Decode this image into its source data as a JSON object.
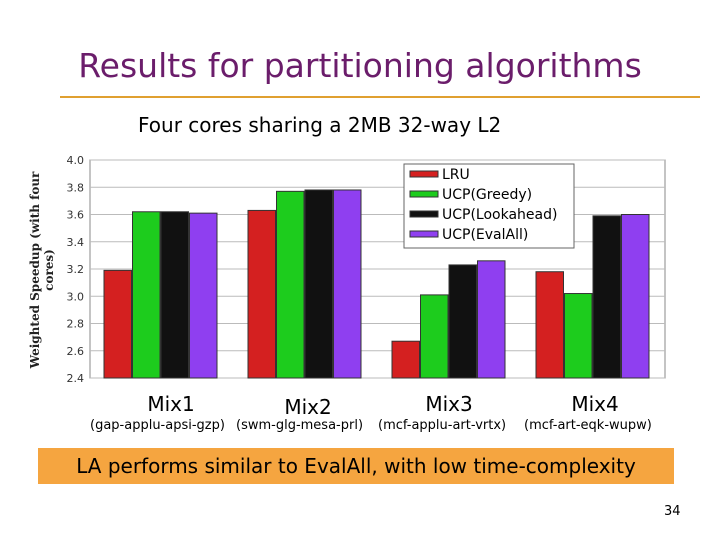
{
  "slide": {
    "title": "Results for partitioning algorithms",
    "conclusion": "LA performs similar to EvalAll, with low time-complexity",
    "page_number": "34"
  },
  "chart_data": {
    "type": "bar",
    "title": "Four cores sharing a 2MB 32-way L2",
    "ylabel": "Weighted Speedup (with four cores)",
    "xlabel": "",
    "ylim": [
      2.4,
      4.0
    ],
    "yticks": [
      "4.0",
      "3.8",
      "3.6",
      "3.4",
      "3.2",
      "3.0",
      "2.8",
      "2.6",
      "2.4"
    ],
    "categories": [
      "Mix1",
      "Mix2",
      "Mix3",
      "Mix4"
    ],
    "category_subtitles": [
      "(gap-applu-apsi-gzp)",
      "(swm-glg-mesa-prl)",
      "(mcf-applu-art-vrtx)",
      "(mcf-art-eqk-wupw)"
    ],
    "legend_position": "top-right",
    "series": [
      {
        "name": "LRU",
        "color": "#d42020",
        "values": [
          3.19,
          3.63,
          2.67,
          3.18
        ]
      },
      {
        "name": "UCP(Greedy)",
        "color": "#1dcc1d",
        "values": [
          3.62,
          3.77,
          3.01,
          3.02
        ]
      },
      {
        "name": "UCP(Lookahead)",
        "color": "#111111",
        "values": [
          3.62,
          3.78,
          3.23,
          3.59
        ]
      },
      {
        "name": "UCP(EvalAll)",
        "color": "#8f3ff0",
        "values": [
          3.61,
          3.78,
          3.26,
          3.6
        ]
      }
    ]
  }
}
